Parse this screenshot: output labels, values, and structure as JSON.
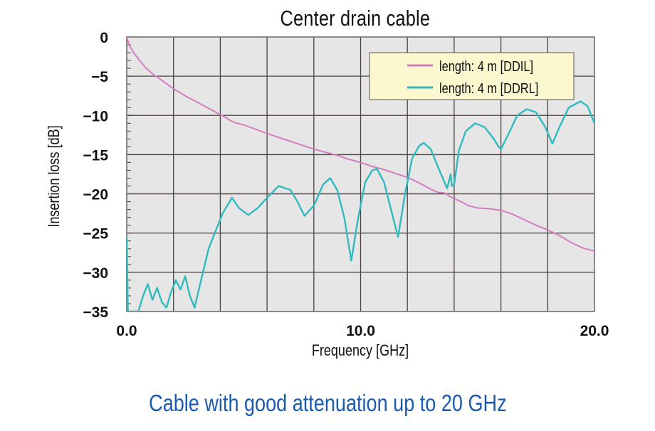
{
  "title": "Center drain cable",
  "caption": "Cable with good attenuation up to 20 GHz",
  "colors": {
    "plot_background": "#e6e6e6",
    "grid": "#4a4040",
    "ddil": "#d27ec0",
    "ddrl": "#30babe",
    "legend_background": "#fbf8cf",
    "caption": "#1a5bb0"
  },
  "axes": {
    "xlabel": "Frequency [GHz]",
    "ylabel": "Insertion loss [dB]",
    "xticks": [
      "0.0",
      "10.0",
      "20.0"
    ],
    "yticks": [
      "0",
      "−5",
      "−10",
      "−15",
      "−20",
      "−25",
      "−30",
      "−35"
    ]
  },
  "legend": {
    "items": [
      {
        "label": "length: 4 m [DDIL]",
        "color": "#d27ec0"
      },
      {
        "label": "length: 4 m [DDRL]",
        "color": "#30babe"
      }
    ]
  },
  "chart_data": {
    "type": "line",
    "title": "Center drain cable",
    "xlabel": "Frequency [GHz]",
    "ylabel": "Insertion loss [dB]",
    "xlim": [
      0,
      20
    ],
    "ylim": [
      -35,
      0
    ],
    "xticks": [
      0,
      10,
      20
    ],
    "yticks": [
      0,
      -5,
      -10,
      -15,
      -20,
      -25,
      -30,
      -35
    ],
    "grid": {
      "x_step": 2,
      "y_step": 5,
      "on": true
    },
    "legend_position": "upper right",
    "series": [
      {
        "name": "length: 4 m [DDIL]",
        "color": "#d27ec0",
        "x": [
          0,
          0.1,
          0.3,
          0.5,
          0.8,
          1.1,
          1.4,
          2.0,
          2.5,
          3.0,
          3.5,
          4.0,
          4.2,
          4.4,
          4.6,
          5.0,
          6.0,
          7.0,
          8.0,
          9.0,
          9.5,
          10.0,
          10.5,
          11.0,
          11.5,
          12.0,
          12.5,
          13.0,
          13.3,
          13.6,
          13.8,
          14.0,
          14.3,
          14.6,
          15.0,
          15.5,
          16.0,
          16.5,
          17.0,
          17.5,
          18.0,
          18.5,
          19.0,
          19.5,
          20.0
        ],
        "y": [
          0,
          -1.0,
          -2.0,
          -2.8,
          -3.9,
          -4.7,
          -5.3,
          -6.6,
          -7.5,
          -8.3,
          -9.1,
          -9.9,
          -10.2,
          -10.6,
          -10.9,
          -11.2,
          -12.3,
          -13.3,
          -14.3,
          -15.1,
          -15.6,
          -16.0,
          -16.5,
          -16.9,
          -17.4,
          -17.9,
          -18.6,
          -19.4,
          -19.8,
          -19.9,
          -20.3,
          -20.6,
          -21.0,
          -21.5,
          -21.8,
          -21.9,
          -22.1,
          -22.6,
          -23.3,
          -24.0,
          -24.6,
          -25.3,
          -26.2,
          -26.9,
          -27.3
        ]
      },
      {
        "name": "length: 4 m [DDRL]",
        "color": "#30babe",
        "x": [
          0.0,
          0.05,
          0.1,
          0.5,
          0.7,
          0.9,
          1.1,
          1.3,
          1.5,
          1.7,
          1.9,
          2.1,
          2.3,
          2.5,
          2.7,
          2.9,
          3.1,
          3.3,
          3.5,
          3.7,
          3.9,
          4.1,
          4.5,
          4.8,
          5.2,
          5.6,
          6.0,
          6.5,
          7.0,
          7.3,
          7.6,
          8.0,
          8.4,
          8.7,
          9.0,
          9.3,
          9.6,
          9.9,
          10.2,
          10.5,
          10.7,
          11.0,
          11.3,
          11.6,
          11.9,
          12.2,
          12.5,
          12.7,
          13.0,
          13.3,
          13.7,
          13.85,
          13.9,
          14.0,
          14.2,
          14.5,
          14.9,
          15.3,
          15.7,
          15.9,
          16.0,
          16.3,
          16.7,
          17.1,
          17.5,
          17.9,
          18.2,
          18.5,
          18.9,
          19.4,
          19.7,
          20.0
        ],
        "y": [
          -25.5,
          -35,
          -35,
          -35,
          -33.0,
          -31.5,
          -33.5,
          -32.0,
          -33.8,
          -34.5,
          -32.5,
          -31.0,
          -32.2,
          -30.5,
          -33.0,
          -34.5,
          -32.0,
          -29.5,
          -27.0,
          -25.5,
          -24.0,
          -22.5,
          -20.5,
          -21.8,
          -22.7,
          -21.8,
          -20.5,
          -19.0,
          -19.5,
          -21.0,
          -22.8,
          -21.5,
          -18.8,
          -18.0,
          -19.5,
          -23.0,
          -28.5,
          -23.0,
          -18.5,
          -17.0,
          -16.8,
          -18.5,
          -22.0,
          -25.5,
          -20.0,
          -15.5,
          -13.9,
          -13.5,
          -14.3,
          -16.5,
          -19.3,
          -17.5,
          -19.0,
          -18.8,
          -14.5,
          -12.0,
          -11.0,
          -11.5,
          -13.0,
          -14.0,
          -14.3,
          -12.5,
          -10.0,
          -9.2,
          -9.6,
          -11.5,
          -13.6,
          -11.5,
          -9.0,
          -8.2,
          -8.8,
          -11.0
        ]
      }
    ]
  }
}
